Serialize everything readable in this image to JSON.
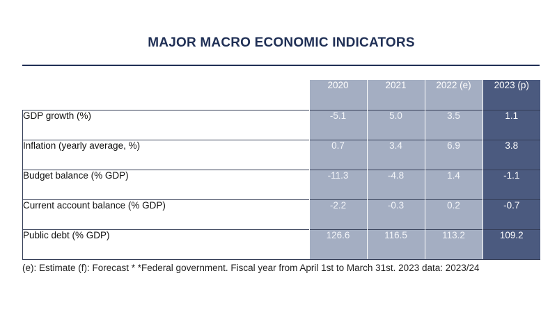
{
  "title": "MAJOR MACRO ECONOMIC INDICATORS",
  "table": {
    "years": [
      "2020",
      "2021",
      "2022 (e)",
      "2023 (p)"
    ],
    "rows": [
      {
        "label": "GDP growth (%)",
        "values": [
          "-5.1",
          "5.0",
          "3.5",
          "1.1"
        ]
      },
      {
        "label": "Inflation (yearly average, %)",
        "values": [
          "0.7",
          "3.4",
          "6.9",
          "3.8"
        ]
      },
      {
        "label": "Budget balance (% GDP)",
        "values": [
          "-11.3",
          "-4.8",
          "1.4",
          "-1.1"
        ]
      },
      {
        "label": "Current account balance (% GDP)",
        "values": [
          "-2.2",
          "-0.3",
          "0.2",
          "-0.7"
        ]
      },
      {
        "label": "Public debt (% GDP)",
        "values": [
          "126.6",
          "116.5",
          "113.2",
          "109.2"
        ]
      }
    ]
  },
  "footnote": "(e): Estimate (f): Forecast * *Federal government. Fiscal year from April 1st to March 31st. 2023 data: 2023/24",
  "colors": {
    "title": "#1f2f55",
    "historical_column": "#a4aec2",
    "projection_column": "#4b5a7f"
  }
}
